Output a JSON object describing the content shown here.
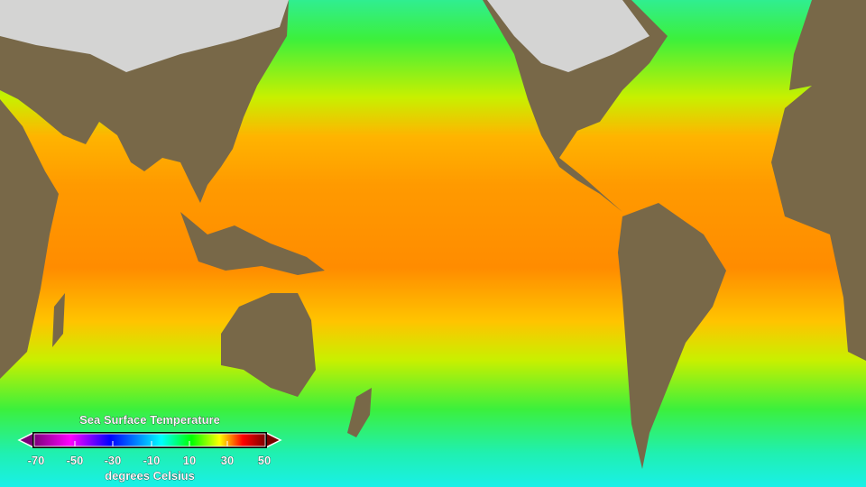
{
  "legend": {
    "title": "Sea Surface Temperature",
    "unit": "degrees Celsius",
    "ticks": [
      "-70",
      "-50",
      "-30",
      "-10",
      "10",
      "30",
      "50"
    ],
    "range": [
      -70,
      50
    ],
    "colormap": [
      "#7a0078",
      "#ff00ff",
      "#0000ff",
      "#00ffff",
      "#00ff00",
      "#ffff00",
      "#ff0000",
      "#7a0000"
    ]
  },
  "colors": {
    "polar": "#19f0e8",
    "temperate": "#3cf03c",
    "subtropical": "#e6f000",
    "tropical": "#ff8c00",
    "land": "#7a6a4a",
    "snow": "#e8ecef"
  }
}
